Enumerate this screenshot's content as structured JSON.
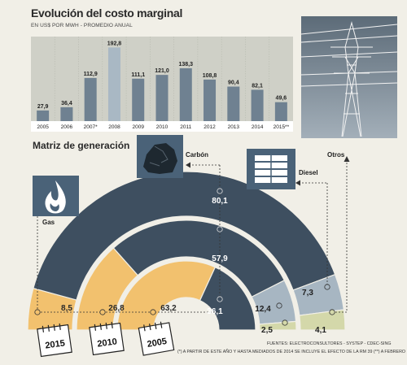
{
  "header": {
    "title": "Evolución del costo marginal",
    "subtitle": "EN US$ POR MWH - PROMEDIO ANUAL"
  },
  "section2": {
    "title": "Matriz de generación"
  },
  "chart_data": [
    {
      "type": "bar",
      "title": "Evolución del costo marginal",
      "categories": [
        "2005",
        "2006",
        "2007*",
        "2008",
        "2009",
        "2010",
        "2011",
        "2012",
        "2013",
        "2014",
        "2015**"
      ],
      "values": [
        27.9,
        36.4,
        112.9,
        192.8,
        111.1,
        121.0,
        138.3,
        108.8,
        90.4,
        82.1,
        49.6
      ],
      "value_labels": [
        "27,9",
        "36,4",
        "112,9",
        "192,8",
        "111,1",
        "121,0",
        "138,3",
        "108,8",
        "90,4",
        "82,1",
        "49,6"
      ],
      "highlight_category": "2008",
      "ylim": [
        0,
        200
      ],
      "grid": false,
      "colors": {
        "bar": "#6f8191",
        "highlight": "#a9b8c4"
      }
    },
    {
      "type": "stacked-semicircle",
      "title": "Matriz de generación",
      "rings": [
        {
          "year": "2015",
          "slices": [
            {
              "source": "Gas",
              "value": 8.5,
              "label": "8,5"
            },
            {
              "source": "Carbón",
              "value": 80.1,
              "label": "80,1"
            },
            {
              "source": "Diesel",
              "value": 7.3,
              "label": "7,3"
            },
            {
              "source": "Otros",
              "value": 4.1,
              "label": "4,1"
            }
          ]
        },
        {
          "year": "2010",
          "slices": [
            {
              "source": "Gas",
              "value": 26.8,
              "label": "26,8"
            },
            {
              "source": "Carbón",
              "value": 57.9,
              "label": "57,9"
            },
            {
              "source": "Diesel",
              "value": 12.4,
              "label": "12,4"
            },
            {
              "source": "Otros",
              "value": 2.5,
              "label": "2,5"
            }
          ]
        },
        {
          "year": "2005",
          "slices": [
            {
              "source": "Gas",
              "value": 63.2,
              "label": "63,2"
            },
            {
              "source": "Carbón",
              "value": 36.1,
              "label": "36,1"
            }
          ]
        }
      ],
      "legend": [
        "Gas",
        "Carbón",
        "Diesel",
        "Otros"
      ],
      "colors": {
        "Gas": "#f2c16e",
        "Carbón": "#3e4f60",
        "Diesel": "#a7b6c2",
        "Otros": "#d4d8aa"
      },
      "icons": {
        "Gas": "flame-icon",
        "Carbón": "coal-icon",
        "Diesel": "oil-barrels-icon",
        "Otros": "power-tower-icon"
      }
    }
  ],
  "footer": {
    "sources": "FUENTES: ELECTROCONSULTORES - SYSTEP - CDEC-SING",
    "note": "(*) A PARTIR DE ESTE AÑO Y HASTA MEDIADOS DE 2014 SE INCLUYE EL EFECTO DE LA RM 39 (**) A FEBRERO"
  }
}
